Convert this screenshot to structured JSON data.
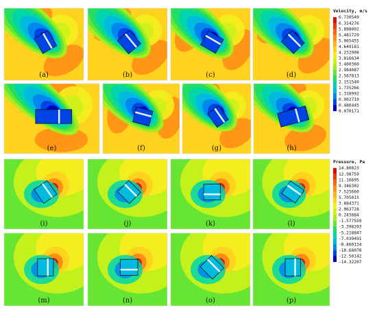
{
  "panels": [
    {
      "label": "(a)",
      "field": "velocity",
      "angle": -30,
      "wide": false
    },
    {
      "label": "(b)",
      "field": "velocity",
      "angle": -40,
      "wide": false
    },
    {
      "label": "(c)",
      "field": "velocity",
      "angle": -60,
      "wide": false
    },
    {
      "label": "(d)",
      "field": "velocity",
      "angle": -45,
      "wide": false
    },
    {
      "label": "(e)",
      "field": "velocity",
      "angle": 0,
      "wide": true
    },
    {
      "label": "(f)",
      "field": "velocity",
      "angle": -75,
      "wide": false
    },
    {
      "label": "(g)",
      "field": "velocity",
      "angle": -35,
      "wide": false
    },
    {
      "label": "(h)",
      "field": "velocity",
      "angle": -15,
      "wide": true
    },
    {
      "label": "(i)",
      "field": "pressure",
      "angle": -35,
      "wide": false
    },
    {
      "label": "(j)",
      "field": "pressure",
      "angle": -45,
      "wide": false
    },
    {
      "label": "(k)",
      "field": "pressure",
      "angle": 90,
      "wide": false
    },
    {
      "label": "(l)",
      "field": "pressure",
      "angle": -55,
      "wide": false
    },
    {
      "label": "(m)",
      "field": "pressure",
      "angle": 0,
      "wide": false
    },
    {
      "label": "(n)",
      "field": "pressure",
      "angle": 90,
      "wide": false
    },
    {
      "label": "(o)",
      "field": "pressure",
      "angle": -45,
      "wide": false
    },
    {
      "label": "(p)",
      "field": "pressure",
      "angle": 0,
      "wide": false
    }
  ],
  "legends": [
    {
      "title": "Velocity, m/s",
      "values": [
        "6.730549",
        "6.314276",
        "5.898002",
        "5.481729",
        "5.065455",
        "4.649181",
        "4.232908",
        "3.816634",
        "3.400360",
        "2.984087",
        "2.567813",
        "2.151540",
        "1.735266",
        "1.318992",
        "0.902719",
        "0.486445",
        "0.070171"
      ]
    },
    {
      "title": "Pressure, Pa",
      "values": [
        "14.80823",
        "12.98759",
        "11.16695",
        "9.346302",
        "7.525660",
        "5.705015",
        "3.884371",
        "2.063728",
        "0.243084",
        "-1.577559",
        "-3.398203",
        "-5.218847",
        "-7.039491",
        "-8.860134",
        "-10.68078",
        "-12.50142",
        "-14.32207"
      ]
    }
  ],
  "colors": {
    "scale": [
      "#0000c8",
      "#0044e6",
      "#0088ee",
      "#00bbdd",
      "#00d6aa",
      "#22dd66",
      "#66e633",
      "#9fef22",
      "#cdf21a",
      "#f4ee1e",
      "#ffd21e",
      "#ffb21a",
      "#ff8c14",
      "#ff6410",
      "#f2340c",
      "#dc0c0c"
    ]
  }
}
